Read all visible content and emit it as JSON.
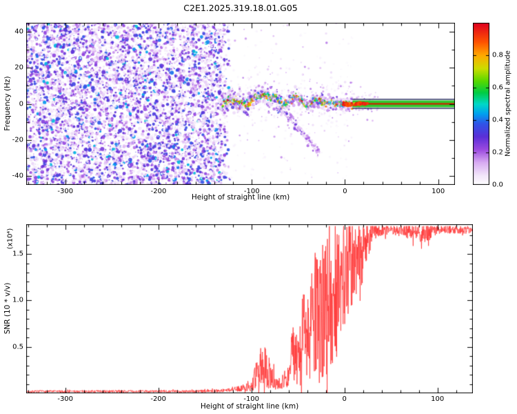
{
  "title": "C2E1.2025.319.18.01.G05",
  "chart_data": [
    {
      "type": "heatmap",
      "title": "C2E1.2025.319.18.01.G05",
      "xlabel": "Height of straight line (km)",
      "ylabel": "Frequency (Hz)",
      "xlim": [
        -342,
        118
      ],
      "ylim": [
        -45,
        45
      ],
      "xticks": [
        -300,
        -200,
        -100,
        0,
        100
      ],
      "yticks": [
        -40,
        -20,
        0,
        20,
        40
      ],
      "ytick_labels": [
        "-40",
        "-20",
        "0",
        "20",
        "40"
      ],
      "xtick_labels": [
        "-300",
        "-200",
        "-100",
        "0",
        "100"
      ],
      "colorbar": {
        "label": "Normalized spectral amplitude",
        "range": [
          0,
          1
        ],
        "ticks": [
          0,
          0.2,
          0.4,
          0.6,
          0.8
        ],
        "tick_labels": [
          "0.0",
          "0.2",
          "0.4",
          "0.6",
          "0.8"
        ]
      },
      "colormap_stops": [
        [
          0.0,
          "#ffffff"
        ],
        [
          0.06,
          "#f2e6fa"
        ],
        [
          0.14,
          "#d8abf2"
        ],
        [
          0.22,
          "#9b4ae0"
        ],
        [
          0.3,
          "#5a2fd8"
        ],
        [
          0.38,
          "#2f55e8"
        ],
        [
          0.44,
          "#00a0f0"
        ],
        [
          0.5,
          "#00d8c8"
        ],
        [
          0.57,
          "#00cc44"
        ],
        [
          0.64,
          "#55d800"
        ],
        [
          0.72,
          "#ccdd00"
        ],
        [
          0.8,
          "#ffaa00"
        ],
        [
          0.88,
          "#ff5500"
        ],
        [
          1.0,
          "#e00020"
        ]
      ],
      "noise_region": {
        "description": "uniform low-amplitude purple speckle noise filling panel",
        "x_edge_km": -122,
        "x_fade_start_km": -134,
        "amplitude_range": [
          0.04,
          0.5
        ]
      },
      "signal_track": [
        [
          -131,
          0
        ],
        [
          -126,
          2
        ],
        [
          -121,
          3
        ],
        [
          -116,
          1.5
        ],
        [
          -111,
          0
        ],
        [
          -106,
          -0.5
        ],
        [
          -101,
          1.5
        ],
        [
          -96,
          3.5
        ],
        [
          -91,
          4.5
        ],
        [
          -86,
          5
        ],
        [
          -81,
          3
        ],
        [
          -76,
          4
        ],
        [
          -71,
          1.5
        ],
        [
          -66,
          -0.5
        ],
        [
          -61,
          1
        ],
        [
          -56,
          3
        ],
        [
          -51,
          4.5
        ],
        [
          -46,
          1.5
        ],
        [
          -41,
          -1.5
        ],
        [
          -36,
          0.5
        ],
        [
          -31,
          2.5
        ],
        [
          -26,
          1.5
        ],
        [
          -21,
          0.5
        ],
        [
          -16,
          1
        ],
        [
          -11,
          0.5
        ],
        [
          -6,
          0
        ],
        [
          0,
          0.5
        ],
        [
          8,
          0
        ]
      ],
      "descending_branch": [
        [
          -73,
          -2
        ],
        [
          -65,
          -5
        ],
        [
          -57,
          -9
        ],
        [
          -49,
          -14
        ],
        [
          -41,
          -19
        ],
        [
          -33,
          -24
        ],
        [
          -27,
          -27
        ]
      ],
      "carrier_line": {
        "x_start_km": 8,
        "freq_hz": 0,
        "edge_hz": 2.5,
        "band_hz": 1.9,
        "band_color": "#2ec82e",
        "core_color": "#cc2200",
        "edge_color": "#262660"
      }
    },
    {
      "type": "line",
      "xlabel": "Height of straight line (km)",
      "ylabel": "SNR (10 * v/v)",
      "y_scale_label": "(x10⁴)",
      "xlim": [
        -342,
        138
      ],
      "ylim": [
        0,
        1.82
      ],
      "xticks": [
        -300,
        -200,
        -100,
        0,
        100
      ],
      "xtick_labels": [
        "-300",
        "-200",
        "-100",
        "0",
        "100"
      ],
      "yticks": [
        0.5,
        1.0,
        1.5
      ],
      "ytick_labels": [
        "0.5",
        "1.0",
        "1.5"
      ],
      "series": [
        {
          "name": "SNR",
          "color": "#ff3333",
          "envelope_points_x_base_jitter": [
            [
              -342,
              0.02,
              0.012
            ],
            [
              -160,
              0.022,
              0.013
            ],
            [
              -130,
              0.03,
              0.018
            ],
            [
              -112,
              0.05,
              0.03
            ],
            [
              -100,
              0.08,
              0.06
            ],
            [
              -93,
              0.22,
              0.18
            ],
            [
              -86,
              0.3,
              0.25
            ],
            [
              -80,
              0.2,
              0.15
            ],
            [
              -74,
              0.12,
              0.08
            ],
            [
              -66,
              0.13,
              0.09
            ],
            [
              -60,
              0.2,
              0.15
            ],
            [
              -54,
              0.5,
              0.4
            ],
            [
              -49,
              0.3,
              0.25
            ],
            [
              -44,
              0.7,
              0.55
            ],
            [
              -38,
              0.55,
              0.45
            ],
            [
              -33,
              0.9,
              0.7
            ],
            [
              -28,
              0.75,
              0.65
            ],
            [
              -22,
              0.95,
              0.8
            ],
            [
              -16,
              1.0,
              0.85
            ],
            [
              -10,
              1.05,
              0.75
            ],
            [
              -4,
              1.2,
              0.6
            ],
            [
              2,
              1.3,
              0.55
            ],
            [
              8,
              1.4,
              0.5
            ],
            [
              14,
              1.45,
              0.45
            ],
            [
              20,
              1.55,
              0.35
            ],
            [
              26,
              1.68,
              0.2
            ],
            [
              32,
              1.74,
              0.08
            ],
            [
              50,
              1.76,
              0.045
            ],
            [
              80,
              1.73,
              0.1
            ],
            [
              88,
              1.72,
              0.12
            ],
            [
              96,
              1.76,
              0.045
            ],
            [
              138,
              1.76,
              0.04
            ]
          ]
        }
      ]
    }
  ]
}
